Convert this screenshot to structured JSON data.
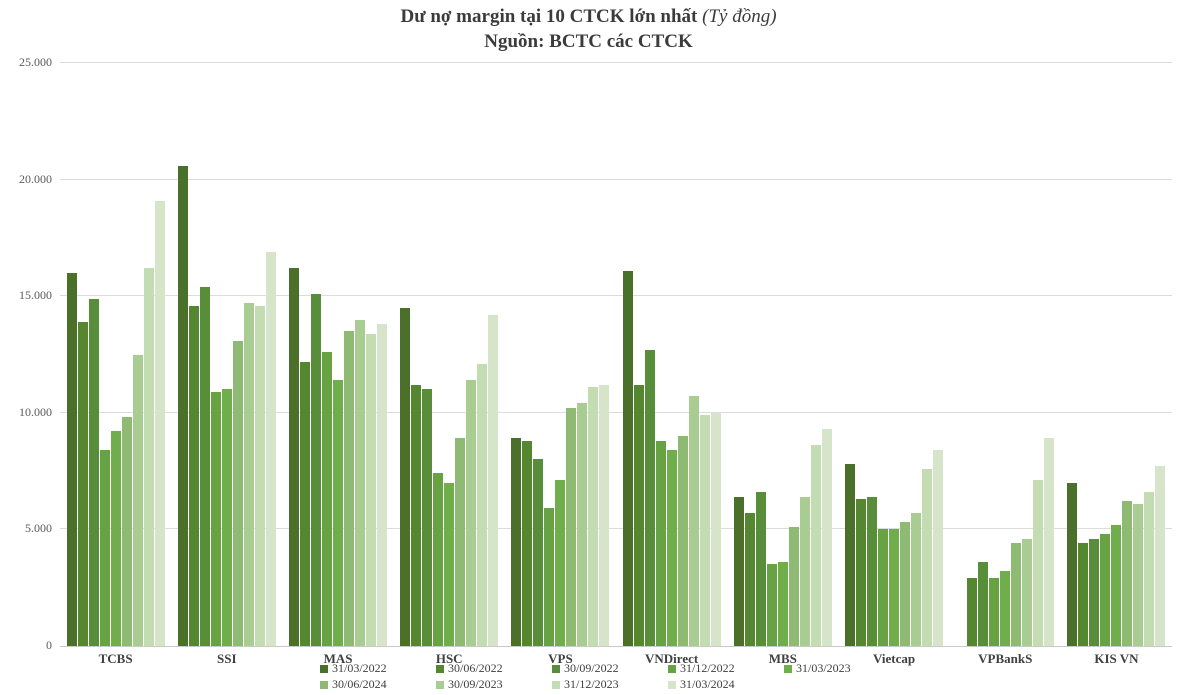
{
  "title": {
    "main": "Dư nợ margin tại 10 CTCK lớn nhất",
    "unit": " (Tỷ đồng)",
    "source": "Nguồn: BCTC các CTCK"
  },
  "y_axis": {
    "tick_labels": [
      "0",
      "5.000",
      "10.000",
      "15.000",
      "20.000",
      "25.000"
    ],
    "tick_values": [
      0,
      5000,
      10000,
      15000,
      20000,
      25000
    ]
  },
  "chart_data": {
    "type": "bar",
    "title": "Dư nợ margin tại 10 CTCK lớn nhất (Tỷ đồng)",
    "subtitle": "Nguồn: BCTC các CTCK",
    "ylabel": "Tỷ đồng",
    "ylim": [
      0,
      25000
    ],
    "grid": true,
    "legend_position": "bottom",
    "categories": [
      "TCBS",
      "SSI",
      "MAS",
      "HSC",
      "VPS",
      "VNDirect",
      "MBS",
      "Vietcap",
      "VPBankS",
      "KIS VN"
    ],
    "series": [
      {
        "name": "31/03/2022",
        "color": "#4a7029",
        "values": [
          16000,
          20600,
          16200,
          14500,
          8900,
          16100,
          6400,
          7800,
          null,
          7000
        ]
      },
      {
        "name": "30/06/2022",
        "color": "#54872f",
        "values": [
          13900,
          14600,
          12200,
          11200,
          8800,
          11200,
          5700,
          6300,
          2900,
          4400
        ]
      },
      {
        "name": "30/09/2022",
        "color": "#588d39",
        "values": [
          14900,
          15400,
          15100,
          11000,
          8000,
          12700,
          6600,
          6400,
          3600,
          4600
        ]
      },
      {
        "name": "31/12/2022",
        "color": "#68a343",
        "values": [
          8400,
          10900,
          12600,
          7400,
          5900,
          8800,
          3500,
          5000,
          2900,
          4800
        ]
      },
      {
        "name": "31/03/2023",
        "color": "#6fae4b",
        "values": [
          9200,
          11000,
          11400,
          7000,
          7100,
          8400,
          3600,
          5000,
          3200,
          5200
        ]
      },
      {
        "name": "30/06/2024",
        "color": "#8eba74",
        "values": [
          9800,
          13100,
          13500,
          8900,
          10200,
          9000,
          5100,
          5300,
          4400,
          6200
        ]
      },
      {
        "name": "30/09/2023",
        "color": "#a8cc92",
        "values": [
          12500,
          14700,
          14000,
          11400,
          10400,
          10700,
          6400,
          5700,
          4600,
          6100
        ]
      },
      {
        "name": "31/12/2023",
        "color": "#c3dcb2",
        "values": [
          16200,
          14600,
          13400,
          12100,
          11100,
          9900,
          8600,
          7600,
          7100,
          6600
        ]
      },
      {
        "name": "31/03/2024",
        "color": "#d6e5c9",
        "values": [
          19100,
          16900,
          13800,
          14200,
          11200,
          10000,
          9300,
          8400,
          8900,
          7700
        ]
      }
    ]
  }
}
